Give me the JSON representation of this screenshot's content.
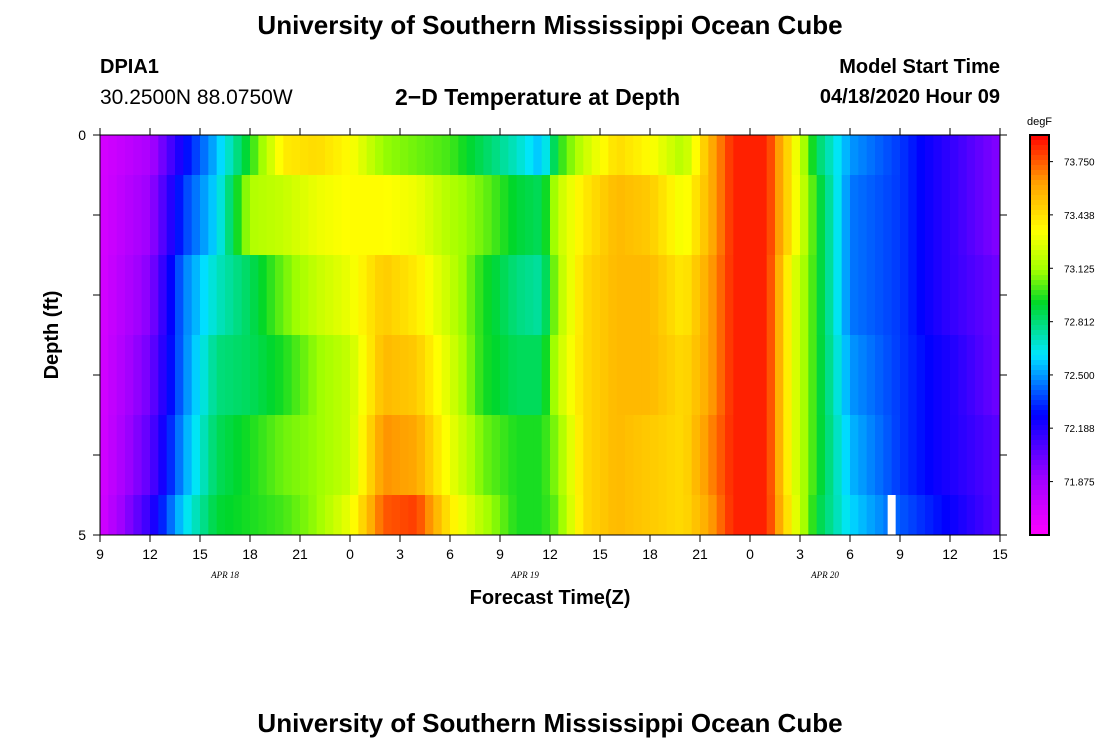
{
  "header": {
    "title": "University of Southern Mississippi Ocean Cube",
    "station": "DPIA1",
    "coordinates": "30.2500N 88.0750W",
    "subtitle": "2−D Temperature at Depth",
    "model_start_label": "Model Start Time",
    "model_start_value": "04/18/2020 Hour 09"
  },
  "footer": {
    "title": "University of Southern Mississippi Ocean Cube"
  },
  "chart_data": {
    "type": "heatmap",
    "title": "2−D Temperature at Depth",
    "xlabel": "Forecast Time(Z)",
    "ylabel": "Depth (ft)",
    "x_hours_start": 9,
    "x_hours_end": 63,
    "x_tick_labels": [
      "9",
      "12",
      "15",
      "18",
      "21",
      "0",
      "3",
      "6",
      "9",
      "12",
      "15",
      "18",
      "21",
      "0",
      "3",
      "6",
      "9",
      "12",
      "15"
    ],
    "date_labels": [
      {
        "label": "APR 18",
        "hour": 16.5
      },
      {
        "label": "APR 19",
        "hour": 34.5
      },
      {
        "label": "APR 20",
        "hour": 52.5
      }
    ],
    "y_tick_labels": [
      "0",
      "5"
    ],
    "ylim": [
      0,
      5
    ],
    "colorbar": {
      "unit": "degF",
      "min": 71.562,
      "max": 73.906,
      "tick_values": [
        73.75,
        73.438,
        73.125,
        72.812,
        72.5,
        72.188,
        71.875
      ],
      "tick_labels": [
        "73.750",
        "73.438",
        "73.125",
        "72.812",
        "72.500",
        "72.188",
        "71.875"
      ]
    },
    "depth_rows": [
      "0-0.5",
      "0.5-1.5",
      "1.5-2.5",
      "2.5-3.5",
      "3.5-4.5",
      "4.5-5"
    ],
    "temperature_keyframes": [
      {
        "hour": 9,
        "row_values": [
          71.7,
          71.7,
          71.7,
          71.7,
          71.7,
          71.7
        ]
      },
      {
        "hour": 12,
        "row_values": [
          71.85,
          71.9,
          71.95,
          72.0,
          72.05,
          72.15
        ]
      },
      {
        "hour": 14,
        "row_values": [
          72.25,
          72.35,
          72.45,
          72.45,
          72.5,
          72.6
        ]
      },
      {
        "hour": 16,
        "row_values": [
          72.55,
          72.6,
          72.7,
          72.8,
          72.85,
          72.9
        ]
      },
      {
        "hour": 18,
        "row_values": [
          72.95,
          73.15,
          72.85,
          72.85,
          72.95,
          72.95
        ]
      },
      {
        "hour": 20,
        "row_values": [
          73.4,
          73.2,
          73.05,
          72.95,
          73.05,
          73.0
        ]
      },
      {
        "hour": 22,
        "row_values": [
          73.45,
          73.3,
          73.2,
          73.1,
          73.1,
          73.1
        ]
      },
      {
        "hour": 24,
        "row_values": [
          73.35,
          73.35,
          73.3,
          73.2,
          73.2,
          73.3
        ]
      },
      {
        "hour": 26,
        "row_values": [
          73.1,
          73.35,
          73.5,
          73.55,
          73.65,
          73.75
        ]
      },
      {
        "hour": 28,
        "row_values": [
          73.05,
          73.3,
          73.4,
          73.5,
          73.6,
          73.8
        ]
      },
      {
        "hour": 30,
        "row_values": [
          73.0,
          73.15,
          73.2,
          73.25,
          73.3,
          73.4
        ]
      },
      {
        "hour": 32,
        "row_values": [
          72.85,
          73.05,
          72.95,
          72.95,
          73.05,
          73.15
        ]
      },
      {
        "hour": 34,
        "row_values": [
          72.7,
          72.9,
          72.8,
          72.85,
          72.95,
          72.95
        ]
      },
      {
        "hour": 35.5,
        "row_values": [
          72.55,
          72.85,
          72.75,
          72.85,
          72.95,
          72.95
        ]
      },
      {
        "hour": 36.5,
        "row_values": [
          72.95,
          73.2,
          73.15,
          73.2,
          73.1,
          73.05
        ]
      },
      {
        "hour": 38,
        "row_values": [
          73.2,
          73.4,
          73.45,
          73.45,
          73.45,
          73.45
        ]
      },
      {
        "hour": 40,
        "row_values": [
          73.45,
          73.55,
          73.55,
          73.55,
          73.55,
          73.55
        ]
      },
      {
        "hour": 42,
        "row_values": [
          73.35,
          73.5,
          73.55,
          73.55,
          73.5,
          73.5
        ]
      },
      {
        "hour": 44,
        "row_values": [
          73.15,
          73.3,
          73.4,
          73.45,
          73.45,
          73.45
        ]
      },
      {
        "hour": 45.5,
        "row_values": [
          73.55,
          73.55,
          73.6,
          73.6,
          73.65,
          73.6
        ]
      },
      {
        "hour": 47,
        "row_values": [
          73.85,
          73.85,
          73.85,
          73.85,
          73.85,
          73.85
        ]
      },
      {
        "hour": 49,
        "row_values": [
          73.85,
          73.85,
          73.85,
          73.85,
          73.85,
          73.85
        ]
      },
      {
        "hour": 50.5,
        "row_values": [
          73.4,
          73.4,
          73.3,
          73.3,
          73.3,
          73.35
        ]
      },
      {
        "hour": 52,
        "row_values": [
          72.85,
          72.95,
          72.95,
          72.95,
          72.95,
          72.9
        ]
      },
      {
        "hour": 54,
        "row_values": [
          72.5,
          72.45,
          72.45,
          72.5,
          72.55,
          72.6
        ]
      },
      {
        "hour": 57,
        "row_values": [
          72.35,
          72.35,
          72.35,
          72.35,
          72.35,
          72.4
        ]
      },
      {
        "hour": 60,
        "row_values": [
          72.15,
          72.15,
          72.15,
          72.2,
          72.2,
          72.25
        ]
      },
      {
        "hour": 63,
        "row_values": [
          71.95,
          71.95,
          72.0,
          72.0,
          72.05,
          72.05
        ]
      }
    ],
    "missing_data_marker": {
      "hour": 56.5,
      "depth_range": [
        4.5,
        5
      ]
    }
  }
}
